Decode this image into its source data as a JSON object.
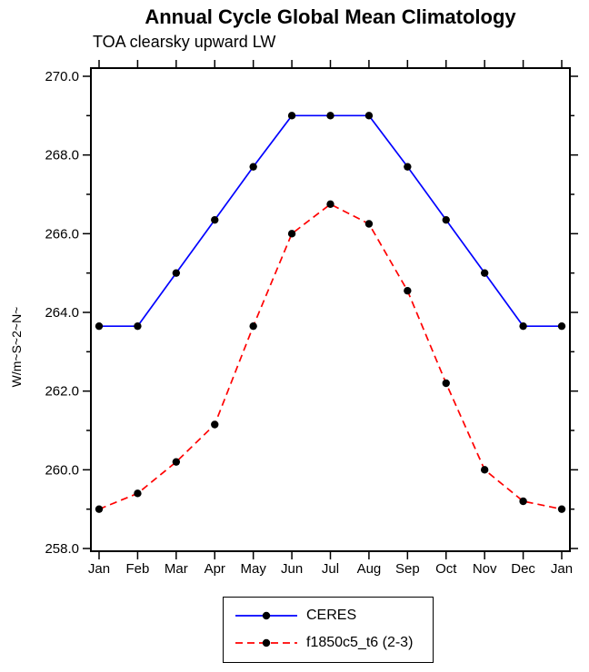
{
  "chart_data": {
    "type": "line",
    "title": "Annual Cycle Global Mean Climatology",
    "subtitle": "TOA clearsky upward LW",
    "ylabel": "W/m~S~2~N~",
    "xlabel": "",
    "x_categories": [
      "Jan",
      "Feb",
      "Mar",
      "Apr",
      "May",
      "Jun",
      "Jul",
      "Aug",
      "Sep",
      "Oct",
      "Nov",
      "Dec",
      "Jan"
    ],
    "ylim": [
      258.0,
      270.0
    ],
    "y_major_step": 2.0,
    "y_minor_step": 1.0,
    "y_tick_labels": [
      "258.0",
      "260.0",
      "262.0",
      "264.0",
      "266.0",
      "268.0",
      "270.0"
    ],
    "grid": false,
    "legend_position": "bottom-center",
    "axis_color": "#000000",
    "marker_radius": 4.2,
    "series": [
      {
        "name": "CERES",
        "color": "#0000ff",
        "line_style": "solid",
        "marker": "filled-circle",
        "marker_color": "#000000",
        "values": [
          263.65,
          263.65,
          265.0,
          266.35,
          267.7,
          269.0,
          269.0,
          269.0,
          267.7,
          266.35,
          265.0,
          263.65,
          263.65
        ]
      },
      {
        "name": "f1850c5_t6 (2-3)",
        "color": "#ff0000",
        "line_style": "dashed",
        "marker": "filled-circle",
        "marker_color": "#000000",
        "values": [
          259.0,
          259.4,
          260.2,
          261.15,
          263.65,
          266.0,
          266.75,
          266.25,
          264.55,
          262.2,
          260.0,
          259.2,
          259.0
        ]
      }
    ]
  }
}
